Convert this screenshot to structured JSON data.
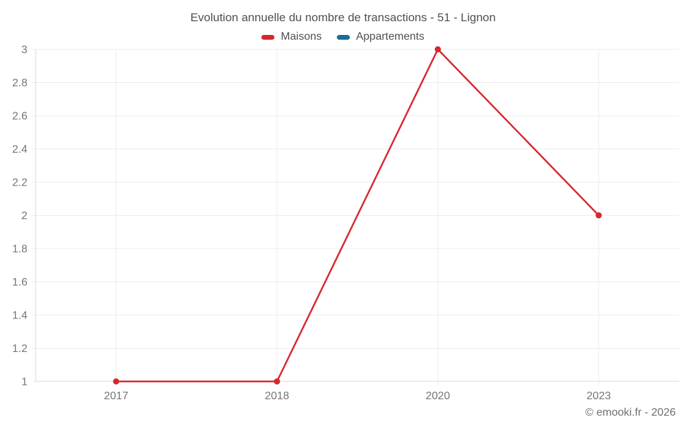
{
  "chart": {
    "title": "Evolution annuelle du nombre de transactions - 51 - Lignon"
  },
  "legend": {
    "items": [
      {
        "label": "Maisons",
        "color": "#d7272e"
      },
      {
        "label": "Appartements",
        "color": "#1a6d9a"
      }
    ]
  },
  "footer": {
    "credit": "© emooki.fr - 2026"
  },
  "chart_data": {
    "type": "line",
    "title": "Evolution annuelle du nombre de transactions - 51 - Lignon",
    "categories": [
      "2017",
      "2018",
      "2020",
      "2023"
    ],
    "series": [
      {
        "name": "Maisons",
        "color": "#d7272e",
        "values": [
          1,
          1,
          3,
          2
        ]
      },
      {
        "name": "Appartements",
        "color": "#1a6d9a",
        "values": []
      }
    ],
    "xlabel": "",
    "ylabel": "",
    "ylim": [
      1,
      3
    ],
    "yticks": [
      1,
      1.2,
      1.4,
      1.6,
      1.8,
      2,
      2.2,
      2.4,
      2.6,
      2.8,
      3
    ],
    "grid": true,
    "legend_position": "top",
    "colors": {
      "grid": "#ececec",
      "axis": "#d8d8d8",
      "tick_label": "#757575",
      "title": "#4f4f4f",
      "footer": "#6e6e6e",
      "background": "#ffffff"
    }
  }
}
